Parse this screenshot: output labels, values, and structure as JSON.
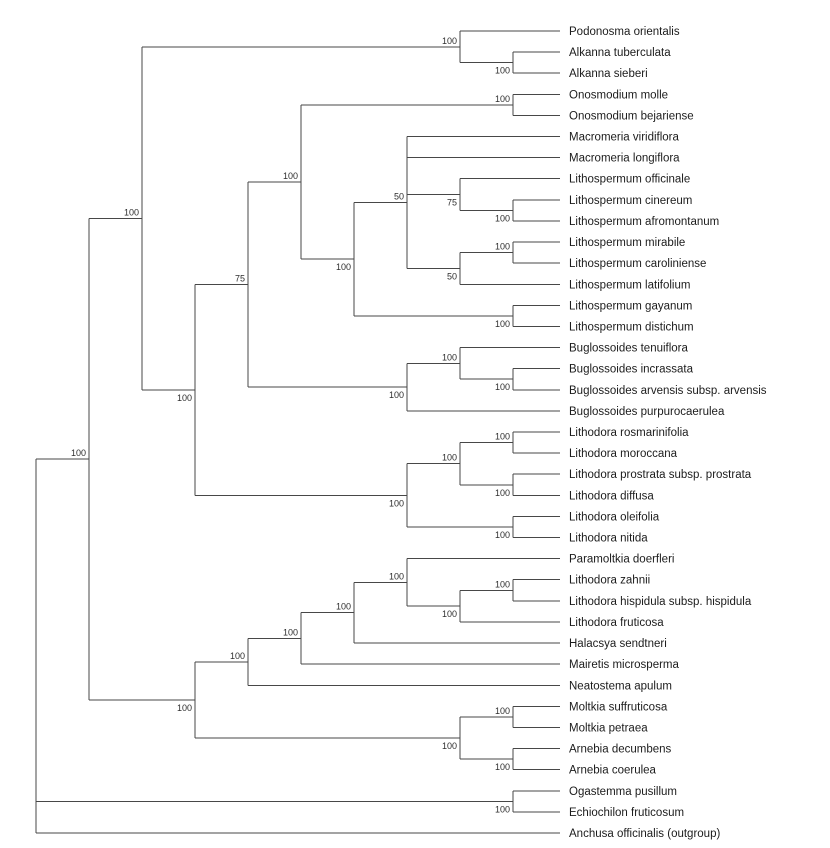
{
  "figure": {
    "type": "phylogenetic-tree-cladogram",
    "background": "#ffffff",
    "line_color": "#474747",
    "taxon_label_color": "#1c1c1c",
    "support_label_color": "#2e2e2e"
  },
  "tree": {
    "children": [
      {
        "support": "100",
        "children": [
          {
            "support": "100",
            "children": [
              {
                "support": "100",
                "children": [
                  {
                    "name": "Podonosma orientalis"
                  },
                  {
                    "support": "100",
                    "children": [
                      {
                        "name": "Alkanna tuberculata"
                      },
                      {
                        "name": "Alkanna sieberi"
                      }
                    ]
                  }
                ]
              },
              {
                "support": "100",
                "children": [
                  {
                    "support": "75",
                    "children": [
                      {
                        "support": "100",
                        "children": [
                          {
                            "support": "100",
                            "children": [
                              {
                                "name": "Onosmodium molle"
                              },
                              {
                                "name": "Onosmodium bejariense"
                              }
                            ]
                          },
                          {
                            "support": "100",
                            "children": [
                              {
                                "support": "50",
                                "children": [
                                  {
                                    "name": "Macromeria viridiflora"
                                  },
                                  {
                                    "name": "Macromeria longiflora"
                                  },
                                  {
                                    "support": "75",
                                    "children": [
                                      {
                                        "name": "Lithospermum officinale"
                                      },
                                      {
                                        "support": "100",
                                        "children": [
                                          {
                                            "name": "Lithospermum cinereum"
                                          },
                                          {
                                            "name": "Lithospermum afromontanum"
                                          }
                                        ]
                                      }
                                    ]
                                  },
                                  {
                                    "support": "50",
                                    "children": [
                                      {
                                        "support": "100",
                                        "children": [
                                          {
                                            "name": "Lithospermum mirabile"
                                          },
                                          {
                                            "name": "Lithospermum caroliniense"
                                          }
                                        ]
                                      },
                                      {
                                        "name": "Lithospermum latifolium"
                                      }
                                    ]
                                  }
                                ]
                              },
                              {
                                "support": "100",
                                "children": [
                                  {
                                    "name": "Lithospermum gayanum"
                                  },
                                  {
                                    "name": "Lithospermum distichum"
                                  }
                                ]
                              }
                            ]
                          }
                        ]
                      },
                      {
                        "support": "100",
                        "children": [
                          {
                            "support": "100",
                            "children": [
                              {
                                "name": "Buglossoides tenuiflora"
                              },
                              {
                                "support": "100",
                                "children": [
                                  {
                                    "name": "Buglossoides incrassata"
                                  },
                                  {
                                    "name": "Buglossoides arvensis subsp. arvensis"
                                  }
                                ]
                              }
                            ]
                          },
                          {
                            "name": "Buglossoides purpurocaerulea"
                          }
                        ]
                      }
                    ]
                  },
                  {
                    "support": "100",
                    "children": [
                      {
                        "support": "100",
                        "children": [
                          {
                            "support": "100",
                            "children": [
                              {
                                "name": "Lithodora rosmarinifolia"
                              },
                              {
                                "name": "Lithodora moroccana"
                              }
                            ]
                          },
                          {
                            "support": "100",
                            "children": [
                              {
                                "name": "Lithodora prostrata subsp. prostrata"
                              },
                              {
                                "name": "Lithodora diffusa"
                              }
                            ]
                          }
                        ]
                      },
                      {
                        "support": "100",
                        "children": [
                          {
                            "name": "Lithodora oleifolia"
                          },
                          {
                            "name": "Lithodora nitida"
                          }
                        ]
                      }
                    ]
                  }
                ]
              }
            ]
          },
          {
            "support": "100",
            "children": [
              {
                "support": "100",
                "children": [
                  {
                    "support": "100",
                    "children": [
                      {
                        "support": "100",
                        "children": [
                          {
                            "support": "100",
                            "children": [
                              {
                                "name": "Paramoltkia doerfleri"
                              },
                              {
                                "support": "100",
                                "children": [
                                  {
                                    "support": "100",
                                    "children": [
                                      {
                                        "name": "Lithodora zahnii"
                                      },
                                      {
                                        "name": "Lithodora hispidula subsp. hispidula"
                                      }
                                    ]
                                  },
                                  {
                                    "name": "Lithodora fruticosa"
                                  }
                                ]
                              }
                            ]
                          },
                          {
                            "name": "Halacsya sendtneri"
                          }
                        ]
                      },
                      {
                        "name": "Mairetis microsperma"
                      }
                    ]
                  },
                  {
                    "name": "Neatostema apulum"
                  }
                ]
              },
              {
                "support": "100",
                "children": [
                  {
                    "support": "100",
                    "children": [
                      {
                        "name": "Moltkia suffruticosa"
                      },
                      {
                        "name": "Moltkia petraea"
                      }
                    ]
                  },
                  {
                    "support": "100",
                    "children": [
                      {
                        "name": "Arnebia decumbens"
                      },
                      {
                        "name": "Arnebia coerulea"
                      }
                    ]
                  }
                ]
              }
            ]
          }
        ]
      },
      {
        "support": "100",
        "children": [
          {
            "name": "Ogastemma pusillum"
          },
          {
            "name": "Echiochilon fruticosum"
          }
        ]
      },
      {
        "name": "Anchusa officinalis (outgroup)"
      }
    ]
  }
}
